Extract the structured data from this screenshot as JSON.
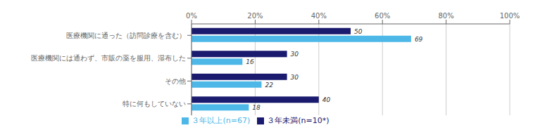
{
  "chart_data": {
    "type": "bar",
    "orientation": "horizontal",
    "categories": [
      "医療機関に通った（訪問診療を含む）",
      "医療機関には通わず、市販の薬を服用、湿布した",
      "その他",
      "特に何もしていない"
    ],
    "series": [
      {
        "name": "３年未満(n=10*)",
        "color": "#1a1a6e",
        "values": [
          50,
          30,
          30,
          40
        ]
      },
      {
        "name": "３年以上(n=67)",
        "color": "#4db8e8",
        "values": [
          69,
          16,
          22,
          18
        ]
      }
    ],
    "xlim": [
      0,
      100
    ],
    "xticks": [
      {
        "value": 0,
        "label": "0%"
      },
      {
        "value": 20,
        "label": "20%"
      },
      {
        "value": 40,
        "label": "40%"
      },
      {
        "value": 60,
        "label": "60%"
      },
      {
        "value": 80,
        "label": "80%"
      },
      {
        "value": 100,
        "label": "100%"
      }
    ],
    "grid": true,
    "data_labels": true,
    "legend": "bottom"
  }
}
